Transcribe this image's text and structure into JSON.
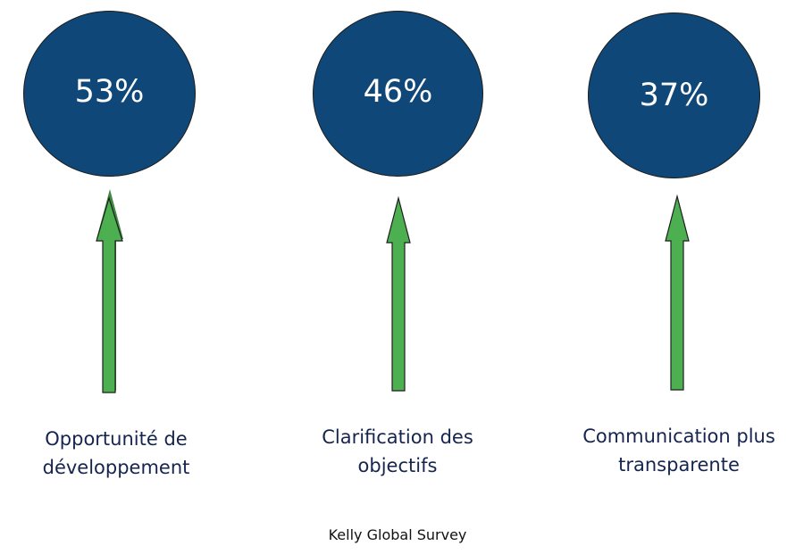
{
  "colors": {
    "circle_fill": "#0f4778",
    "circle_text": "#ffffff",
    "arrow_fill": "#4caf50",
    "label_text": "#16254f"
  },
  "items": [
    {
      "value": "53%",
      "label_line1": "Opportunité de",
      "label_line2": "développement"
    },
    {
      "value": "46%",
      "label_line1": "Clarification des",
      "label_line2": "objectifs"
    },
    {
      "value": "37%",
      "label_line1": "Communication plus",
      "label_line2": "transparente"
    }
  ],
  "footer": "Kelly Global Survey"
}
